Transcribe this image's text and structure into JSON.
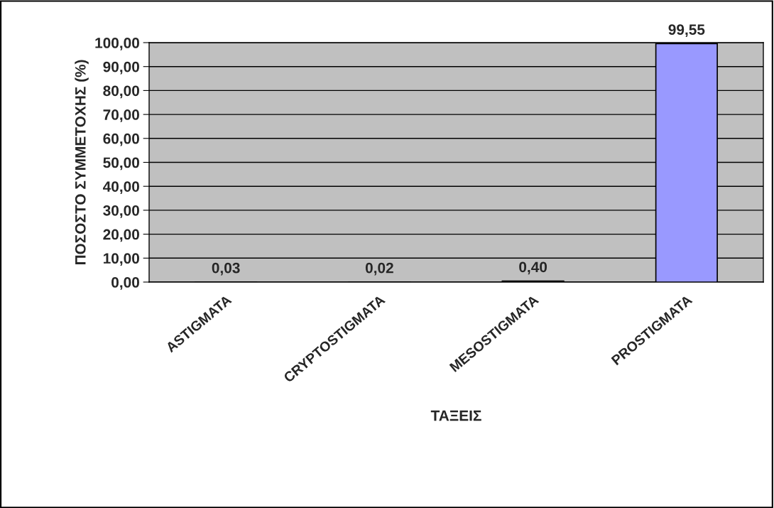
{
  "chart_data": {
    "type": "bar",
    "xlabel": "ΤΑΞΕΙΣ",
    "ylabel": "ΠΟΣΟΣΤΟ ΣΥΜΜΕΤΟΧΗΣ (%)",
    "categories": [
      "ASTIGMATA",
      "CRYPTOSTIGMATA",
      "MESOSTIGMATA",
      "PROSTIGMATA"
    ],
    "values": [
      0.03,
      0.02,
      0.4,
      99.55
    ],
    "value_labels": [
      "0,03",
      "0,02",
      "0,40",
      "99,55"
    ],
    "color": "#9999ff",
    "ylim": [
      0,
      100
    ],
    "yticks": [
      {
        "value": 0,
        "label": "0,00"
      },
      {
        "value": 10,
        "label": "10,00"
      },
      {
        "value": 20,
        "label": "20,00"
      },
      {
        "value": 30,
        "label": "30,00"
      },
      {
        "value": 40,
        "label": "40,00"
      },
      {
        "value": 50,
        "label": "50,00"
      },
      {
        "value": 60,
        "label": "60,00"
      },
      {
        "value": 70,
        "label": "70,00"
      },
      {
        "value": 80,
        "label": "80,00"
      },
      {
        "value": 90,
        "label": "90,00"
      },
      {
        "value": 100,
        "label": "100,00"
      }
    ],
    "grid": "y"
  }
}
